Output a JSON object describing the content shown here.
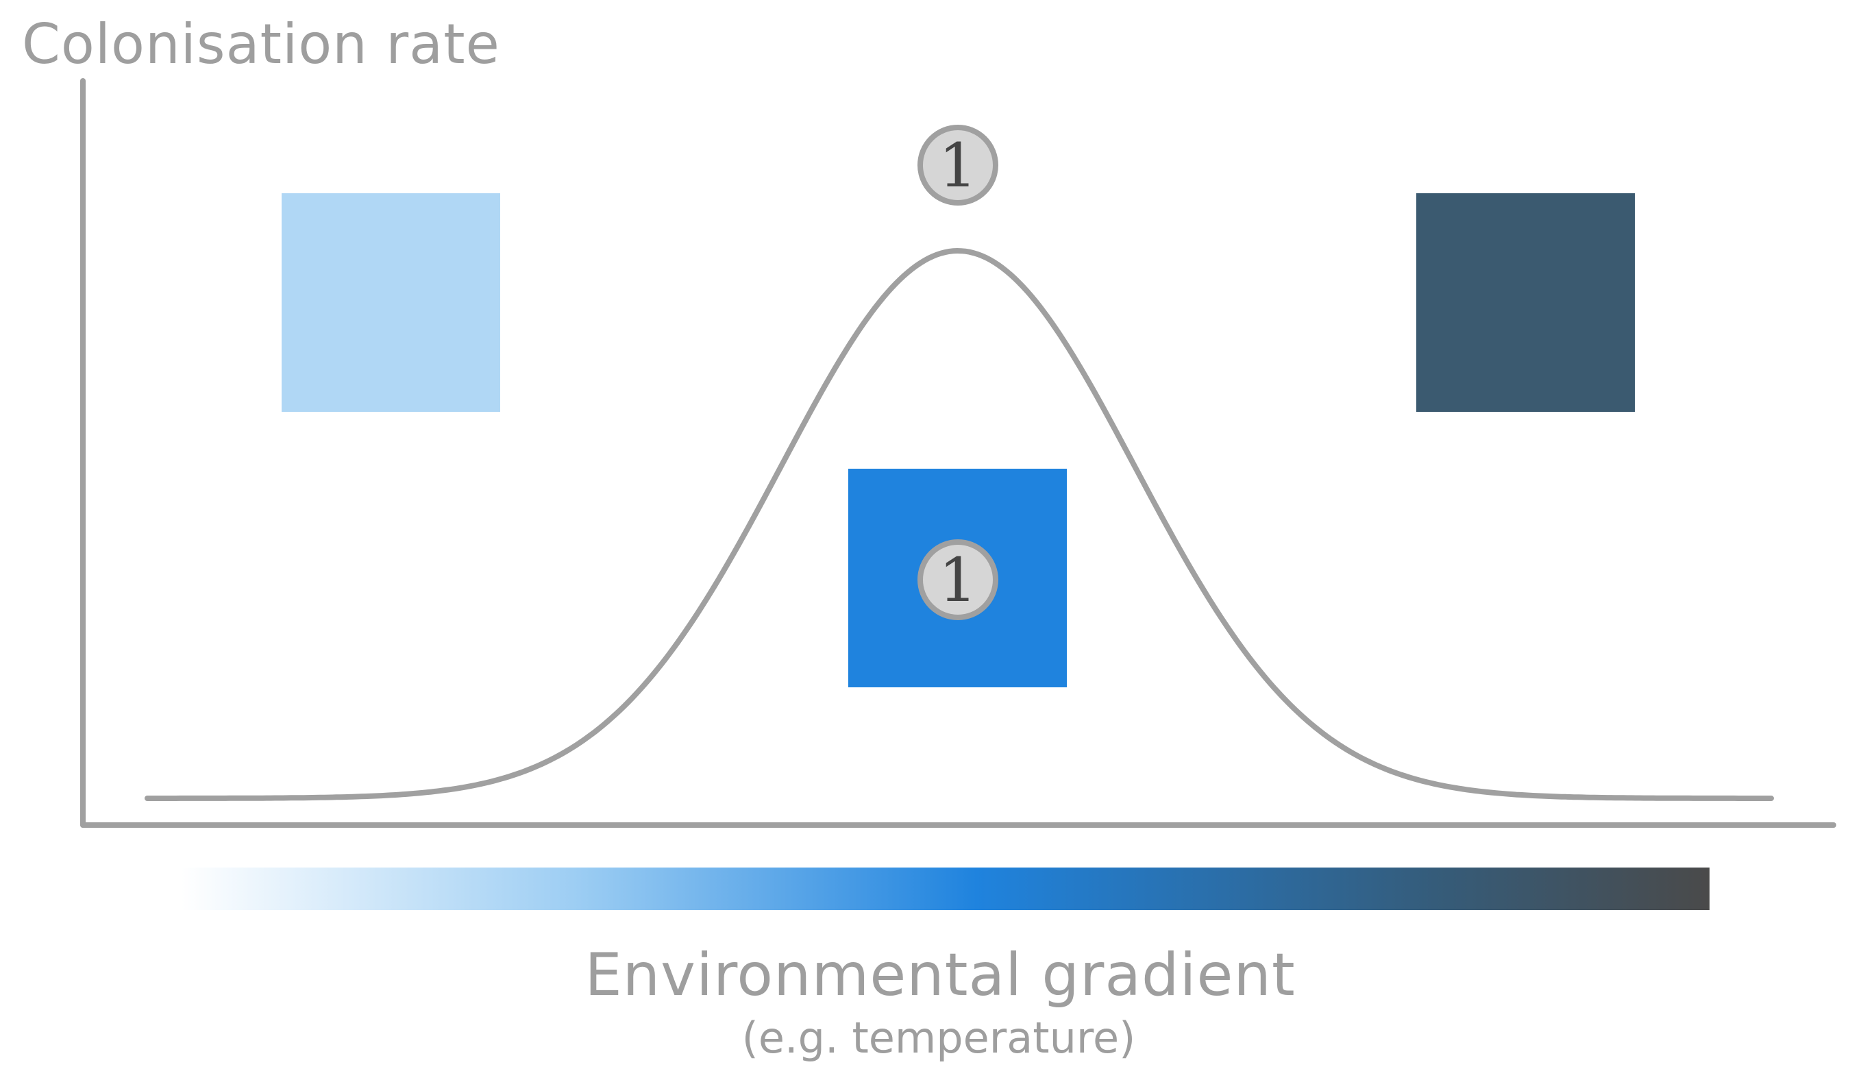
{
  "diagram": {
    "y_axis_title": "Colonisation rate",
    "x_axis_title": "Environmental gradient",
    "x_axis_subtitle": "(e.g. temperature)",
    "curve": {
      "shape": "bell",
      "color": "#a0a0a0"
    },
    "squares": [
      {
        "name": "cold-habitat-square",
        "color": "#b0d7f5"
      },
      {
        "name": "optimal-habitat-square",
        "color": "#1f83de"
      },
      {
        "name": "warm-habitat-square",
        "color": "#3b5a70"
      }
    ],
    "badges": [
      {
        "name": "peak-marker-badge",
        "label": "1",
        "fill": "#d6d6d6",
        "stroke": "#a0a0a0"
      },
      {
        "name": "square-marker-badge",
        "label": "1",
        "fill": "#d6d6d6",
        "stroke": "#a0a0a0"
      }
    ],
    "gradient_bar": {
      "colors": [
        "#ffffff",
        "#9ccdf3",
        "#1f83de",
        "#355c7a",
        "#4a4a4a"
      ]
    },
    "axis_color": "#a0a0a0"
  }
}
